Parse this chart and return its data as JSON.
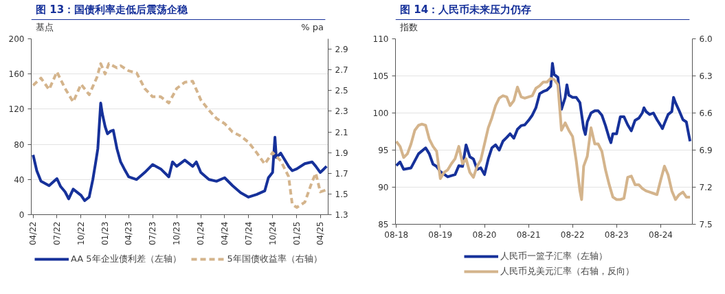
{
  "chart_data": [
    {
      "type": "line",
      "title": "图 13：国债利率走低后震荡企稳",
      "ylabel": "基点",
      "y2label": "% pa",
      "legend": "bottom",
      "grid": "y",
      "xlim": [
        "2022-03-25",
        "2025-05-01"
      ],
      "xticks": [
        {
          "value": "2022-04-01",
          "label": "04/22"
        },
        {
          "value": "2022-07-01",
          "label": "07/22"
        },
        {
          "value": "2022-10-01",
          "label": "10/22"
        },
        {
          "value": "2023-01-01",
          "label": "01/23"
        },
        {
          "value": "2023-04-01",
          "label": "04/23"
        },
        {
          "value": "2023-07-01",
          "label": "07/23"
        },
        {
          "value": "2023-10-01",
          "label": "10/23"
        },
        {
          "value": "2024-01-01",
          "label": "01/24"
        },
        {
          "value": "2024-04-01",
          "label": "04/24"
        },
        {
          "value": "2024-07-01",
          "label": "07/24"
        },
        {
          "value": "2024-10-01",
          "label": "10/24"
        },
        {
          "value": "2025-01-01",
          "label": "01/25"
        },
        {
          "value": "2025-04-01",
          "label": "04/25"
        }
      ],
      "ylim": [
        0,
        200
      ],
      "yticks": [
        0,
        40,
        80,
        120,
        160,
        200
      ],
      "y2lim": [
        1.3,
        3.0
      ],
      "y2ticks": [
        1.3,
        1.5,
        1.7,
        1.9,
        2.1,
        2.3,
        2.5,
        2.7,
        2.9
      ],
      "series": [
        {
          "name": "AA 5年企业债利差（左轴）",
          "color": "#16319a",
          "line_style": "solid",
          "x": [
            "2022-04-01",
            "2022-04-15",
            "2022-05-01",
            "2022-06-01",
            "2022-07-01",
            "2022-07-15",
            "2022-08-01",
            "2022-08-15",
            "2022-09-01",
            "2022-10-01",
            "2022-10-15",
            "2022-11-01",
            "2022-11-15",
            "2022-11-25",
            "2022-12-04",
            "2022-12-15",
            "2022-12-21",
            "2023-01-01",
            "2023-01-10",
            "2023-01-22",
            "2023-02-01",
            "2023-02-15",
            "2023-03-01",
            "2023-03-15",
            "2023-04-01",
            "2023-05-01",
            "2023-06-01",
            "2023-07-01",
            "2023-08-01",
            "2023-09-01",
            "2023-09-15",
            "2023-10-01",
            "2023-11-01",
            "2023-12-01",
            "2023-12-15",
            "2024-01-01",
            "2024-02-01",
            "2024-03-01",
            "2024-04-01",
            "2024-05-01",
            "2024-06-01",
            "2024-07-01",
            "2024-08-01",
            "2024-09-01",
            "2024-09-15",
            "2024-10-01",
            "2024-10-10",
            "2024-10-15",
            "2024-11-01",
            "2024-12-01",
            "2024-12-15",
            "2025-01-01",
            "2025-02-01",
            "2025-03-01",
            "2025-03-15",
            "2025-04-01",
            "2025-04-15",
            "2025-04-25"
          ],
          "values": [
            68,
            50,
            38,
            33,
            41,
            32,
            26,
            18,
            29,
            22,
            16,
            20,
            40,
            58,
            75,
            127,
            115,
            100,
            92,
            95,
            96,
            75,
            60,
            52,
            43,
            40,
            48,
            57,
            52,
            43,
            60,
            55,
            62,
            55,
            60,
            48,
            40,
            38,
            42,
            33,
            25,
            20,
            23,
            27,
            42,
            48,
            88,
            65,
            70,
            55,
            50,
            52,
            58,
            60,
            55,
            48,
            52,
            55
          ]
        },
        {
          "name": "5年国债收益率（右轴）",
          "color": "#d4b48c",
          "line_style": "dashed",
          "axis": "y2",
          "x": [
            "2022-04-01",
            "2022-05-01",
            "2022-06-01",
            "2022-07-01",
            "2022-08-01",
            "2022-09-01",
            "2022-10-01",
            "2022-11-01",
            "2022-12-01",
            "2022-12-15",
            "2023-01-01",
            "2023-01-15",
            "2023-02-15",
            "2023-03-01",
            "2023-04-01",
            "2023-05-01",
            "2023-06-01",
            "2023-07-01",
            "2023-08-01",
            "2023-09-01",
            "2023-10-01",
            "2023-11-01",
            "2023-12-01",
            "2024-01-01",
            "2024-02-01",
            "2024-03-01",
            "2024-04-01",
            "2024-05-01",
            "2024-06-01",
            "2024-07-01",
            "2024-08-01",
            "2024-09-01",
            "2024-10-01",
            "2024-11-01",
            "2024-12-01",
            "2024-12-15",
            "2025-01-01",
            "2025-02-01",
            "2025-03-01",
            "2025-03-15",
            "2025-04-01",
            "2025-04-25"
          ],
          "values": [
            2.55,
            2.62,
            2.51,
            2.68,
            2.52,
            2.39,
            2.56,
            2.46,
            2.63,
            2.76,
            2.66,
            2.76,
            2.72,
            2.74,
            2.69,
            2.67,
            2.52,
            2.44,
            2.44,
            2.38,
            2.52,
            2.58,
            2.59,
            2.41,
            2.31,
            2.23,
            2.18,
            2.1,
            2.06,
            2.0,
            1.9,
            1.79,
            1.9,
            1.82,
            1.67,
            1.4,
            1.37,
            1.42,
            1.62,
            1.7,
            1.52,
            1.54
          ]
        }
      ]
    },
    {
      "type": "line",
      "title": "图 14：人民币未来压力仍存",
      "ylabel": "指数",
      "legend": "bottom",
      "grid": "y",
      "xlim": [
        "2018-07-25",
        "2025-04-20"
      ],
      "xticks": [
        {
          "value": "2018-08-01",
          "label": "08-18"
        },
        {
          "value": "2019-08-01",
          "label": "08-19"
        },
        {
          "value": "2020-08-01",
          "label": "08-20"
        },
        {
          "value": "2021-08-01",
          "label": "08-21"
        },
        {
          "value": "2022-08-01",
          "label": "08-22"
        },
        {
          "value": "2023-08-01",
          "label": "08-23"
        },
        {
          "value": "2024-08-01",
          "label": "08-24"
        }
      ],
      "ylim": [
        85,
        110
      ],
      "yticks": [
        85,
        90,
        95,
        100,
        105,
        110
      ],
      "y2lim": [
        7.5,
        6.0
      ],
      "y2ticks": [
        {
          "value": 6.0,
          "label": "6.0"
        },
        6.3,
        6.6,
        6.9,
        7.2,
        {
          "value": 7.5,
          "label": "7.5"
        }
      ],
      "series": [
        {
          "name": "人民币一篮子汇率（左轴）",
          "color": "#16319a",
          "line_style": "solid",
          "x": [
            "2018-08",
            "2018-09",
            "2018-10",
            "2018-12",
            "2019-02",
            "2019-04",
            "2019-05",
            "2019-06",
            "2019-07",
            "2019-08",
            "2019-10",
            "2019-12",
            "2020-01",
            "2020-02",
            "2020-03",
            "2020-04",
            "2020-05",
            "2020-06",
            "2020-07",
            "2020-08",
            "2020-09",
            "2020-10",
            "2020-11",
            "2020-12",
            "2021-01",
            "2021-02",
            "2021-03",
            "2021-04",
            "2021-05",
            "2021-06",
            "2021-07",
            "2021-08",
            "2021-09",
            "2021-10",
            "2021-11",
            "2021-12",
            "2022-01",
            "2022-02",
            "2022-02-15",
            "2022-03",
            "2022-04",
            "2022-05",
            "2022-06",
            "2022-06-15",
            "2022-07",
            "2022-08",
            "2022-09",
            "2022-10",
            "2022-11",
            "2022-11-15",
            "2022-12",
            "2023-01",
            "2023-02",
            "2023-03",
            "2023-04",
            "2023-05",
            "2023-06",
            "2023-06-15",
            "2023-07",
            "2023-08",
            "2023-09",
            "2023-10",
            "2023-11",
            "2023-12",
            "2024-01",
            "2024-02",
            "2024-03",
            "2024-03-15",
            "2024-04",
            "2024-05",
            "2024-06",
            "2024-07",
            "2024-08",
            "2024-08-15",
            "2024-09",
            "2024-10",
            "2024-11",
            "2024-11-15",
            "2024-12",
            "2025-01",
            "2025-02",
            "2025-03",
            "2025-03-15",
            "2025-04"
          ],
          "values": [
            92.9,
            93.4,
            92.4,
            92.6,
            94.5,
            95.3,
            94.5,
            93.1,
            92.8,
            92.1,
            91.4,
            91.7,
            92.9,
            92.8,
            95.7,
            94.1,
            93.8,
            92.4,
            92.6,
            91.7,
            93.8,
            95.3,
            95.7,
            95.0,
            96.2,
            96.7,
            97.2,
            96.6,
            97.8,
            98.3,
            98.4,
            99.0,
            99.7,
            100.7,
            102.6,
            102.9,
            103.1,
            103.6,
            106.7,
            105.2,
            104.8,
            100.5,
            102.1,
            103.8,
            102.4,
            102.1,
            102.1,
            101.4,
            97.9,
            97.1,
            98.8,
            100.0,
            100.3,
            100.3,
            99.7,
            98.3,
            96.6,
            96.0,
            97.2,
            97.2,
            99.5,
            99.5,
            98.4,
            97.6,
            99.0,
            99.3,
            100.0,
            100.7,
            100.2,
            99.8,
            100.0,
            99.1,
            98.3,
            97.9,
            98.6,
            99.8,
            100.2,
            102.1,
            101.4,
            100.3,
            99.1,
            98.8,
            97.6,
            96.2
          ]
        },
        {
          "name": "人民币兑美元汇率（右轴，反向）",
          "color": "#d4b48c",
          "line_style": "solid",
          "axis": "y2",
          "x": [
            "2018-08",
            "2018-09",
            "2018-10",
            "2018-11",
            "2018-12",
            "2019-01",
            "2019-02",
            "2019-03",
            "2019-04",
            "2019-05",
            "2019-06",
            "2019-07",
            "2019-08",
            "2019-09",
            "2019-10",
            "2019-11",
            "2019-12",
            "2020-01",
            "2020-02",
            "2020-03",
            "2020-04",
            "2020-05",
            "2020-06",
            "2020-07",
            "2020-08",
            "2020-09",
            "2020-10",
            "2020-11",
            "2020-12",
            "2021-01",
            "2021-02",
            "2021-03",
            "2021-04",
            "2021-05",
            "2021-06",
            "2021-07",
            "2021-08",
            "2021-09",
            "2021-10",
            "2021-11",
            "2021-12",
            "2022-01",
            "2022-02",
            "2022-03",
            "2022-04",
            "2022-05",
            "2022-06",
            "2022-07",
            "2022-08",
            "2022-09",
            "2022-10",
            "2022-10-15",
            "2022-11",
            "2022-12",
            "2023-01",
            "2023-02",
            "2023-03",
            "2023-04",
            "2023-05",
            "2023-06",
            "2023-07",
            "2023-08",
            "2023-09",
            "2023-10",
            "2023-11",
            "2023-12",
            "2024-01",
            "2024-02",
            "2024-03",
            "2024-04",
            "2024-05",
            "2024-06",
            "2024-07",
            "2024-08",
            "2024-09",
            "2024-10",
            "2024-11",
            "2024-12",
            "2025-01",
            "2025-02",
            "2025-03",
            "2025-04"
          ],
          "values": [
            6.83,
            6.87,
            6.96,
            6.93,
            6.85,
            6.74,
            6.7,
            6.69,
            6.7,
            6.81,
            6.87,
            6.91,
            7.13,
            7.08,
            7.06,
            7.01,
            6.97,
            6.87,
            7.01,
            6.97,
            7.08,
            7.12,
            7.03,
            6.98,
            6.85,
            6.72,
            6.64,
            6.54,
            6.48,
            6.46,
            6.47,
            6.54,
            6.5,
            6.39,
            6.47,
            6.48,
            6.47,
            6.46,
            6.4,
            6.38,
            6.35,
            6.35,
            6.32,
            6.33,
            6.37,
            6.74,
            6.68,
            6.74,
            6.79,
            6.99,
            7.23,
            7.3,
            7.03,
            6.95,
            6.72,
            6.85,
            6.85,
            6.91,
            7.06,
            7.18,
            7.28,
            7.3,
            7.3,
            7.29,
            7.12,
            7.11,
            7.18,
            7.18,
            7.21,
            7.23,
            7.24,
            7.25,
            7.26,
            7.14,
            7.03,
            7.1,
            7.23,
            7.3,
            7.26,
            7.24,
            7.28,
            7.28
          ]
        }
      ]
    }
  ]
}
